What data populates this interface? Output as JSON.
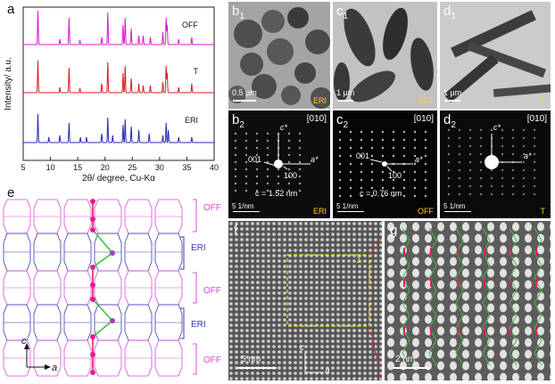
{
  "panels": {
    "a": {
      "letter": "a",
      "chart_data": {
        "type": "line",
        "title": "",
        "xlabel": "2θ/ degree, Cu-Kα",
        "ylabel": "Intensity/ a.u.",
        "xlim": [
          5,
          40
        ],
        "x_ticks": [
          "5",
          "10",
          "15",
          "20",
          "25",
          "30",
          "35",
          "40"
        ],
        "series": [
          {
            "name": "OFF",
            "color": "#d81ad8"
          },
          {
            "name": "T",
            "color": "#d42020"
          },
          {
            "name": "ERI",
            "color": "#2a2ab8"
          }
        ]
      }
    },
    "b1": {
      "letter": "b",
      "sub": "1",
      "tag": "ERI",
      "scale": "0.5 μm"
    },
    "c1": {
      "letter": "c",
      "sub": "1",
      "tag": "OFF",
      "scale": "1 μm"
    },
    "d1": {
      "letter": "d",
      "sub": "1",
      "tag": "T",
      "scale": "1 μm"
    },
    "b2": {
      "letter": "b",
      "sub": "2",
      "zone": "[010]",
      "c_axis": "c*",
      "a_axis": "a*",
      "r1": "001",
      "r2": "100",
      "cval": "c = 1.52 nm",
      "scale": "5 1/nm",
      "tag": "ERI"
    },
    "c2": {
      "letter": "c",
      "sub": "2",
      "zone": "[010]",
      "a_axis": "a*",
      "r1": "001",
      "r2": "100",
      "cval": "c = 0.76 nm",
      "scale": "5 1/nm",
      "tag": "OFF"
    },
    "d2": {
      "letter": "d",
      "sub": "2",
      "zone": "[010]",
      "c_axis": "c*",
      "a_axis": "a*",
      "scale": "5 1/nm",
      "tag": "T"
    },
    "e": {
      "letter": "e",
      "layers": [
        "OFF",
        "ERI",
        "OFF",
        "ERI",
        "OFF"
      ],
      "axis_c": "c",
      "axis_a": "a"
    },
    "f": {
      "letter": "f",
      "roi": "1",
      "scale": "5 nm",
      "axis_c": "c",
      "axis_a": "a"
    },
    "g": {
      "letter": "g",
      "scale": "2 nm"
    }
  },
  "colors": {
    "off": "#d94bd9",
    "eri": "#3b3bb8",
    "green": "#3fbf3f",
    "red": "#e0205a",
    "yellow": "#f5e400"
  }
}
